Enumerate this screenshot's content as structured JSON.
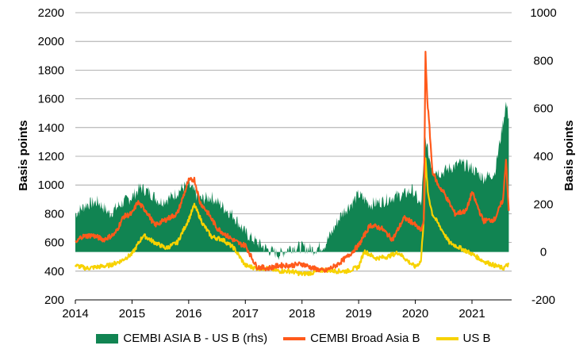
{
  "colors": {
    "spread_fill": "#118452",
    "cembi_line": "#ff5a1b",
    "usb_line": "#f7d200",
    "grid": "#9a9a9a",
    "zero_band": "#ffffff"
  },
  "chart_data": {
    "type": "area",
    "title": "",
    "xlabel": "",
    "ylabel_left": "Basis points",
    "ylabel_right": "Basis points",
    "ylim_left": [
      200,
      2200
    ],
    "ylim_right": [
      -200,
      1000
    ],
    "xlim": [
      2014,
      2021.7
    ],
    "grid": "horizontal",
    "legend_position": "bottom",
    "left_ticks": [
      "200",
      "400",
      "600",
      "800",
      "1000",
      "1200",
      "1400",
      "1600",
      "1800",
      "2000",
      "2200"
    ],
    "right_ticks": [
      "-200",
      "0",
      "200",
      "400",
      "600",
      "800",
      "1000"
    ],
    "x_ticks": [
      "2014",
      "2015",
      "2016",
      "2017",
      "2018",
      "2019",
      "2020",
      "2021"
    ],
    "legend": [
      "CEMBI ASIA B - US B (rhs)",
      "CEMBI Broad Asia B",
      "US B"
    ],
    "series": [
      {
        "name": "CEMBI ASIA B - US B (rhs)",
        "axis": "right",
        "style": "area",
        "x": [
          2014.0,
          2014.2,
          2014.4,
          2014.6,
          2014.8,
          2015.0,
          2015.15,
          2015.3,
          2015.5,
          2015.7,
          2015.9,
          2016.0,
          2016.2,
          2016.4,
          2016.6,
          2016.8,
          2017.0,
          2017.2,
          2017.4,
          2017.6,
          2017.8,
          2018.0,
          2018.2,
          2018.4,
          2018.5,
          2018.7,
          2018.9,
          2019.0,
          2019.2,
          2019.4,
          2019.6,
          2019.8,
          2019.95,
          2020.1,
          2020.18,
          2020.22,
          2020.3,
          2020.45,
          2020.6,
          2020.8,
          2021.0,
          2021.2,
          2021.4,
          2021.52,
          2021.6,
          2021.65
        ],
        "values": [
          160,
          200,
          210,
          160,
          200,
          230,
          270,
          250,
          210,
          230,
          270,
          280,
          220,
          230,
          190,
          150,
          80,
          40,
          10,
          -10,
          20,
          20,
          10,
          30,
          70,
          160,
          210,
          240,
          200,
          210,
          230,
          240,
          260,
          190,
          480,
          420,
          350,
          330,
          350,
          370,
          350,
          310,
          330,
          500,
          620,
          560
        ]
      },
      {
        "name": "CEMBI Broad Asia B",
        "axis": "left",
        "style": "line",
        "x": [
          2014.0,
          2014.1,
          2014.3,
          2014.5,
          2014.7,
          2014.85,
          2015.0,
          2015.1,
          2015.25,
          2015.4,
          2015.6,
          2015.8,
          2016.0,
          2016.1,
          2016.2,
          2016.35,
          2016.5,
          2016.7,
          2016.9,
          2017.0,
          2017.2,
          2017.4,
          2017.6,
          2017.8,
          2018.0,
          2018.2,
          2018.4,
          2018.6,
          2018.8,
          2019.0,
          2019.2,
          2019.4,
          2019.6,
          2019.8,
          2019.95,
          2020.1,
          2020.15,
          2020.18,
          2020.21,
          2020.25,
          2020.3,
          2020.4,
          2020.5,
          2020.7,
          2020.9,
          2021.0,
          2021.2,
          2021.4,
          2021.55,
          2021.6,
          2021.65
        ],
        "values": [
          590,
          640,
          650,
          620,
          660,
          780,
          800,
          880,
          820,
          720,
          760,
          800,
          1030,
          1040,
          880,
          800,
          700,
          640,
          590,
          580,
          430,
          420,
          440,
          440,
          450,
          420,
          400,
          440,
          500,
          580,
          720,
          700,
          620,
          770,
          740,
          680,
          750,
          1920,
          1600,
          1400,
          1100,
          1000,
          950,
          800,
          820,
          950,
          750,
          760,
          900,
          1180,
          820
        ]
      },
      {
        "name": "US B",
        "axis": "left",
        "style": "line",
        "x": [
          2014.0,
          2014.2,
          2014.4,
          2014.6,
          2014.8,
          2015.0,
          2015.2,
          2015.4,
          2015.6,
          2015.8,
          2016.0,
          2016.1,
          2016.25,
          2016.4,
          2016.6,
          2016.8,
          2017.0,
          2017.2,
          2017.4,
          2017.6,
          2017.8,
          2018.0,
          2018.2,
          2018.4,
          2018.6,
          2018.8,
          2019.0,
          2019.1,
          2019.3,
          2019.5,
          2019.7,
          2019.9,
          2020.0,
          2020.1,
          2020.15,
          2020.18,
          2020.22,
          2020.3,
          2020.45,
          2020.6,
          2020.8,
          2021.0,
          2021.2,
          2021.4,
          2021.55,
          2021.65
        ],
        "values": [
          440,
          420,
          430,
          440,
          470,
          520,
          650,
          600,
          560,
          600,
          760,
          860,
          730,
          640,
          620,
          560,
          440,
          420,
          420,
          400,
          400,
          380,
          390,
          410,
          400,
          400,
          430,
          540,
          490,
          500,
          530,
          460,
          430,
          470,
          780,
          1180,
          950,
          800,
          700,
          600,
          560,
          520,
          470,
          440,
          420,
          450
        ]
      }
    ]
  }
}
